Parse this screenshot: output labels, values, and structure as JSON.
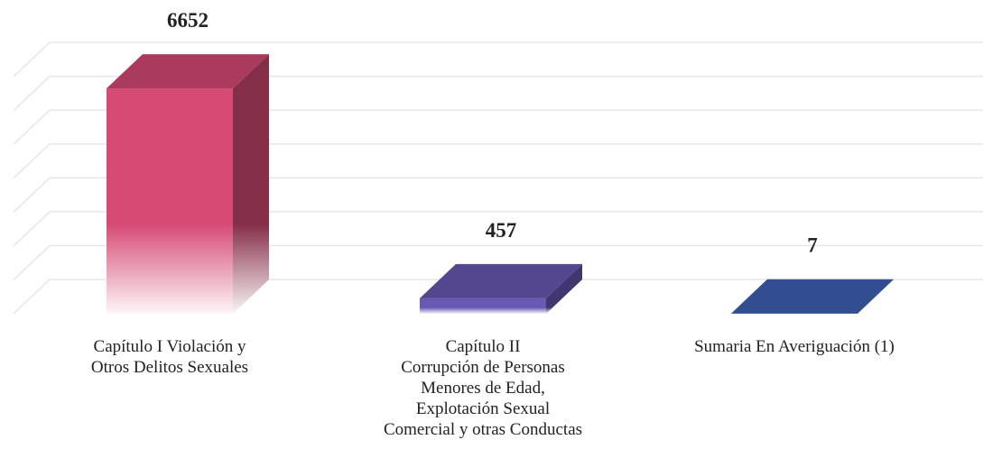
{
  "chart_data": {
    "type": "bar3d",
    "categories": [
      "Capítulo I  Violación y\nOtros Delitos Sexuales",
      "Capítulo II\nCorrupción de Personas\nMenores de Edad,\nExplotación Sexual\nComercial y otras Conductas",
      "Sumaria En Averiguación (1)"
    ],
    "values": [
      6652,
      457,
      7
    ],
    "colors": [
      "#d64a74",
      "#6b57b4",
      "#4062b4"
    ],
    "ylim": [
      0,
      7000
    ],
    "yticks": [
      0,
      1000,
      2000,
      3000,
      4000,
      5000,
      6000,
      7000
    ],
    "grid": true
  }
}
